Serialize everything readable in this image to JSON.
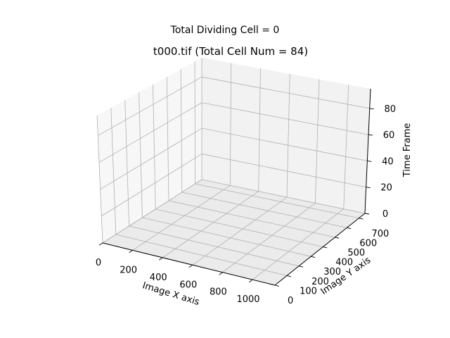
{
  "figure": {
    "suptitle": "Total Dividing Cell = 0"
  },
  "chart_data": {
    "type": "scatter",
    "title": "t000.tif (Total Cell Num = 84)",
    "xlabel": "Image X axis",
    "ylabel": "Image Y axis",
    "zlabel": "Time Frame",
    "xlim": [
      0,
      1150
    ],
    "ylim": [
      0,
      750
    ],
    "zlim": [
      0,
      95
    ],
    "xticks": [
      "0",
      "200",
      "400",
      "600",
      "800",
      "1000"
    ],
    "yticks": [
      "0",
      "100",
      "200",
      "300",
      "400",
      "500",
      "600",
      "700"
    ],
    "zticks": [
      "0",
      "20",
      "40",
      "60",
      "80"
    ],
    "grid": true,
    "series": [],
    "colors": {
      "pane_back": "#f2f2f2",
      "pane_side": "#f7f7f7",
      "pane_floor": "#ebebeb",
      "grid": "#b0b0b0",
      "axis": "#000000"
    }
  }
}
